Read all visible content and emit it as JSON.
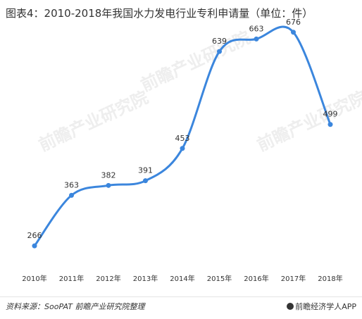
{
  "title": "图表4：2010-2018年我国水力发电行业专利申请量（单位：件）",
  "footer": {
    "source": "资料来源：SooPAT 前瞻产业研究院整理",
    "brand": "前瞻经济学人APP"
  },
  "watermark": "前瞻产业研究院",
  "colors": {
    "line": "#3b86dd",
    "text": "#333333"
  },
  "chart_data": {
    "type": "line",
    "title": "图表4：2010-2018年我国水力发电行业专利申请量（单位：件）",
    "xlabel": "",
    "ylabel": "",
    "categories": [
      "2010年",
      "2011年",
      "2012年",
      "2013年",
      "2014年",
      "2015年",
      "2016年",
      "2017年",
      "2018年"
    ],
    "values": [
      266,
      363,
      382,
      391,
      453,
      639,
      663,
      676,
      499
    ],
    "ylim": [
      200,
      700
    ],
    "smooth": true,
    "grid": false,
    "legend": "none"
  }
}
